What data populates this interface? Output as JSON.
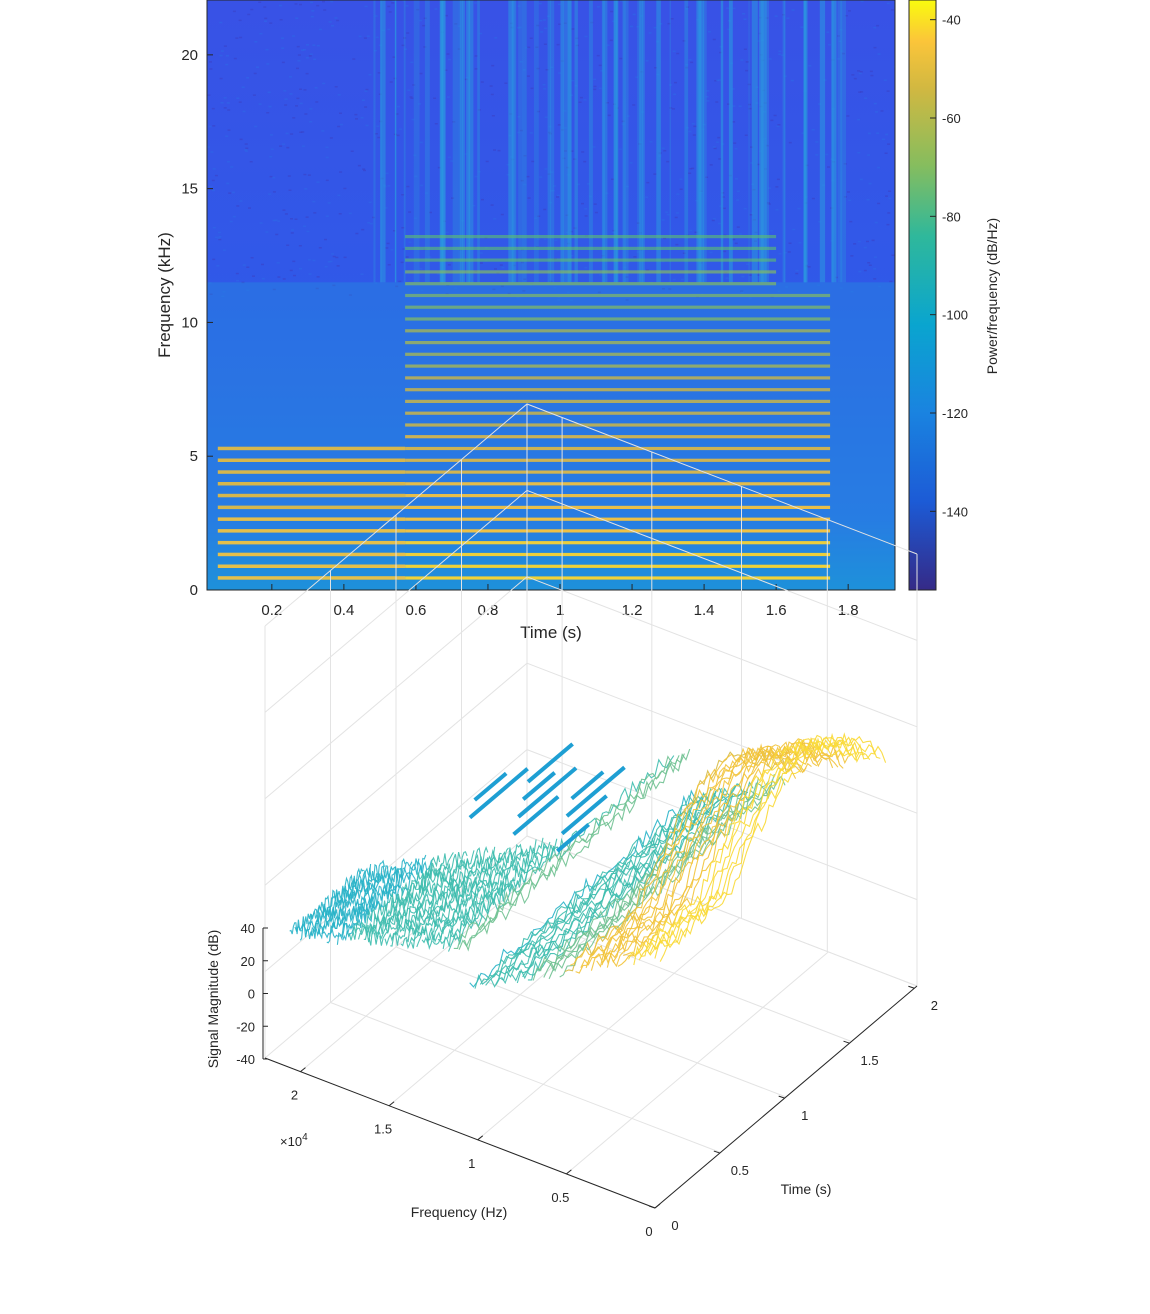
{
  "chart_data": [
    {
      "type": "heatmap",
      "xlabel": "Time (s)",
      "ylabel": "Frequency (kHz)",
      "colorbar_label": "Power/frequency (dB/Hz)",
      "x_range": [
        0.02,
        1.93
      ],
      "y_range": [
        0,
        22.05
      ],
      "x_ticks": [
        "0.2",
        "0.4",
        "0.6",
        "0.8",
        "1",
        "1.2",
        "1.4",
        "1.6",
        "1.8"
      ],
      "y_ticks": [
        "0",
        "5",
        "10",
        "15",
        "20"
      ],
      "colorbar_range": [
        -156,
        -36
      ],
      "colorbar_ticks": [
        "-40",
        "-60",
        "-80",
        "-100",
        "-120",
        "-140"
      ],
      "colormap": "parula",
      "fundamental_khz": 0.44,
      "harmonic_onset_s": 0.57,
      "harmonic_offset_s": 1.75,
      "band_cutoff_khz": 11.5
    },
    {
      "type": "surface3d",
      "xlabel": "Frequency (Hz)",
      "ylabel": "Time (s)",
      "zlabel": "Signal Magnitude (dB)",
      "x_ticks": [
        "0",
        "0.5",
        "1",
        "1.5",
        "2"
      ],
      "x_exponent": "×10",
      "x_exponent_power": "4",
      "y_ticks": [
        "0",
        "0.5",
        "1",
        "1.5",
        "2"
      ],
      "z_ticks": [
        "40",
        "20",
        "0",
        "-20",
        "-40"
      ],
      "grid": true
    }
  ]
}
